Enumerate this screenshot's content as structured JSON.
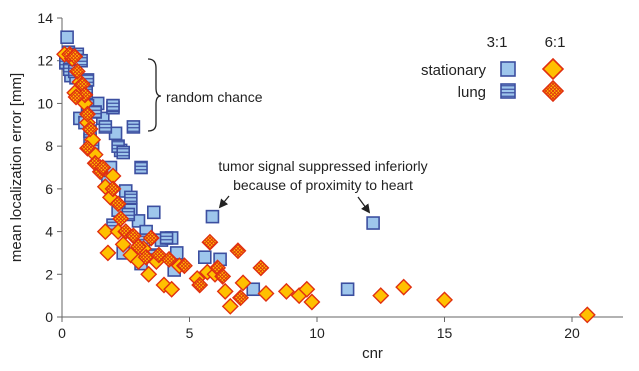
{
  "chart_data": {
    "type": "scatter",
    "xlabel": "cnr",
    "ylabel": "mean localization error [mm]",
    "xlim": [
      0,
      22
    ],
    "ylim": [
      0,
      14
    ],
    "xticks": [
      0,
      5,
      10,
      15,
      20
    ],
    "yticks": [
      0,
      2,
      4,
      6,
      8,
      10,
      12,
      14
    ],
    "grid": false,
    "legend": {
      "placement": "top-right",
      "column_headers": [
        "3:1",
        "6:1"
      ],
      "row_labels": [
        "stationary",
        "lung"
      ]
    },
    "series": [
      {
        "name": "stationary 3:1",
        "marker": "square",
        "fill": "#9ec6ec",
        "stroke": "#3c4fa0",
        "hatch": false,
        "points": [
          [
            0.2,
            13.1
          ],
          [
            0.25,
            12.4
          ],
          [
            0.3,
            11.8
          ],
          [
            0.35,
            11.3
          ],
          [
            0.5,
            12.1
          ],
          [
            0.55,
            11.2
          ],
          [
            0.8,
            11.0
          ],
          [
            0.9,
            10.6
          ],
          [
            0.7,
            9.3
          ],
          [
            0.9,
            9.1
          ],
          [
            1.1,
            8.3
          ],
          [
            1.4,
            10.0
          ],
          [
            1.6,
            9.3
          ],
          [
            2.0,
            9.8
          ],
          [
            2.1,
            8.6
          ],
          [
            2.3,
            7.8
          ],
          [
            1.9,
            7.0
          ],
          [
            1.8,
            6.3
          ],
          [
            2.5,
            5.9
          ],
          [
            2.2,
            5.0
          ],
          [
            2.7,
            5.0
          ],
          [
            3.0,
            4.5
          ],
          [
            3.6,
            4.9
          ],
          [
            3.3,
            4.0
          ],
          [
            3.9,
            3.6
          ],
          [
            4.3,
            3.7
          ],
          [
            4.5,
            3.0
          ],
          [
            4.4,
            2.2
          ],
          [
            3.1,
            2.5
          ],
          [
            2.4,
            3.0
          ],
          [
            5.6,
            2.8
          ],
          [
            5.9,
            4.7
          ],
          [
            6.2,
            2.7
          ],
          [
            7.5,
            1.3
          ],
          [
            11.2,
            1.3
          ],
          [
            12.2,
            4.4
          ]
        ]
      },
      {
        "name": "lung 3:1",
        "marker": "square",
        "fill": "#9ec6ec",
        "stroke": "#3c4fa0",
        "hatch": true,
        "points": [
          [
            0.15,
            11.9
          ],
          [
            0.3,
            11.6
          ],
          [
            0.5,
            11.5
          ],
          [
            0.6,
            12.3
          ],
          [
            0.75,
            12.0
          ],
          [
            1.0,
            11.1
          ],
          [
            0.95,
            10.5
          ],
          [
            1.0,
            9.9
          ],
          [
            1.3,
            9.6
          ],
          [
            1.1,
            8.7
          ],
          [
            1.2,
            8.0
          ],
          [
            1.7,
            8.9
          ],
          [
            2.0,
            9.9
          ],
          [
            2.2,
            8.0
          ],
          [
            2.8,
            8.9
          ],
          [
            3.1,
            7.0
          ],
          [
            2.4,
            7.7
          ],
          [
            2.7,
            5.6
          ],
          [
            2.0,
            4.3
          ],
          [
            2.6,
            4.8
          ],
          [
            3.2,
            3.6
          ],
          [
            3.6,
            2.9
          ],
          [
            4.1,
            3.7
          ]
        ]
      },
      {
        "name": "stationary 6:1",
        "marker": "diamond",
        "fill": "#ffc000",
        "stroke": "#e03010",
        "hatch": false,
        "points": [
          [
            0.1,
            12.3
          ],
          [
            0.4,
            12.1
          ],
          [
            0.5,
            10.5
          ],
          [
            0.7,
            11.0
          ],
          [
            0.9,
            10.0
          ],
          [
            1.0,
            9.1
          ],
          [
            1.2,
            8.3
          ],
          [
            1.3,
            7.6
          ],
          [
            1.5,
            7.0
          ],
          [
            1.7,
            6.1
          ],
          [
            1.9,
            5.6
          ],
          [
            2.0,
            6.6
          ],
          [
            1.7,
            4.0
          ],
          [
            2.2,
            4.0
          ],
          [
            1.8,
            3.0
          ],
          [
            2.4,
            3.4
          ],
          [
            2.7,
            2.9
          ],
          [
            3.0,
            2.6
          ],
          [
            3.2,
            3.2
          ],
          [
            3.4,
            2.0
          ],
          [
            3.7,
            2.6
          ],
          [
            4.0,
            1.5
          ],
          [
            4.3,
            1.3
          ],
          [
            4.6,
            2.4
          ],
          [
            5.3,
            1.8
          ],
          [
            5.7,
            2.1
          ],
          [
            6.0,
            2.0
          ],
          [
            6.4,
            1.2
          ],
          [
            6.6,
            0.5
          ],
          [
            7.1,
            1.6
          ],
          [
            8.0,
            1.1
          ],
          [
            8.8,
            1.2
          ],
          [
            9.3,
            1.0
          ],
          [
            9.6,
            1.3
          ],
          [
            9.8,
            0.7
          ],
          [
            12.5,
            1.0
          ],
          [
            13.4,
            1.4
          ],
          [
            15.0,
            0.8
          ],
          [
            20.6,
            0.1
          ]
        ]
      },
      {
        "name": "lung 6:1",
        "marker": "diamond",
        "fill": "#ffc000",
        "stroke": "#e03010",
        "hatch": true,
        "points": [
          [
            0.3,
            12.3
          ],
          [
            0.5,
            12.2
          ],
          [
            0.6,
            11.5
          ],
          [
            0.8,
            10.9
          ],
          [
            0.9,
            10.4
          ],
          [
            0.55,
            10.3
          ],
          [
            1.0,
            9.5
          ],
          [
            1.1,
            8.8
          ],
          [
            1.0,
            7.9
          ],
          [
            1.3,
            7.2
          ],
          [
            1.5,
            6.8
          ],
          [
            1.6,
            7.0
          ],
          [
            2.0,
            6.0
          ],
          [
            2.2,
            5.3
          ],
          [
            2.3,
            4.6
          ],
          [
            2.5,
            4.0
          ],
          [
            2.8,
            3.8
          ],
          [
            3.0,
            3.3
          ],
          [
            3.3,
            2.8
          ],
          [
            3.5,
            3.7
          ],
          [
            3.8,
            2.9
          ],
          [
            4.2,
            2.7
          ],
          [
            4.8,
            2.4
          ],
          [
            5.4,
            1.5
          ],
          [
            5.8,
            3.5
          ],
          [
            6.1,
            2.3
          ],
          [
            6.3,
            1.9
          ],
          [
            6.9,
            3.1
          ],
          [
            7.0,
            0.9
          ],
          [
            7.8,
            2.3
          ]
        ]
      }
    ],
    "annotations": [
      {
        "name": "random-chance",
        "text": "random chance",
        "style": "brace",
        "range_y": [
          9.0,
          12.6
        ],
        "at_x": 3.5
      },
      {
        "name": "tumor-signal",
        "lines": [
          "tumor signal suppressed inferiorly",
          "because of proximity to heart"
        ],
        "arrows_to": [
          [
            5.9,
            5.3
          ],
          [
            12.2,
            5.1
          ]
        ]
      }
    ]
  }
}
